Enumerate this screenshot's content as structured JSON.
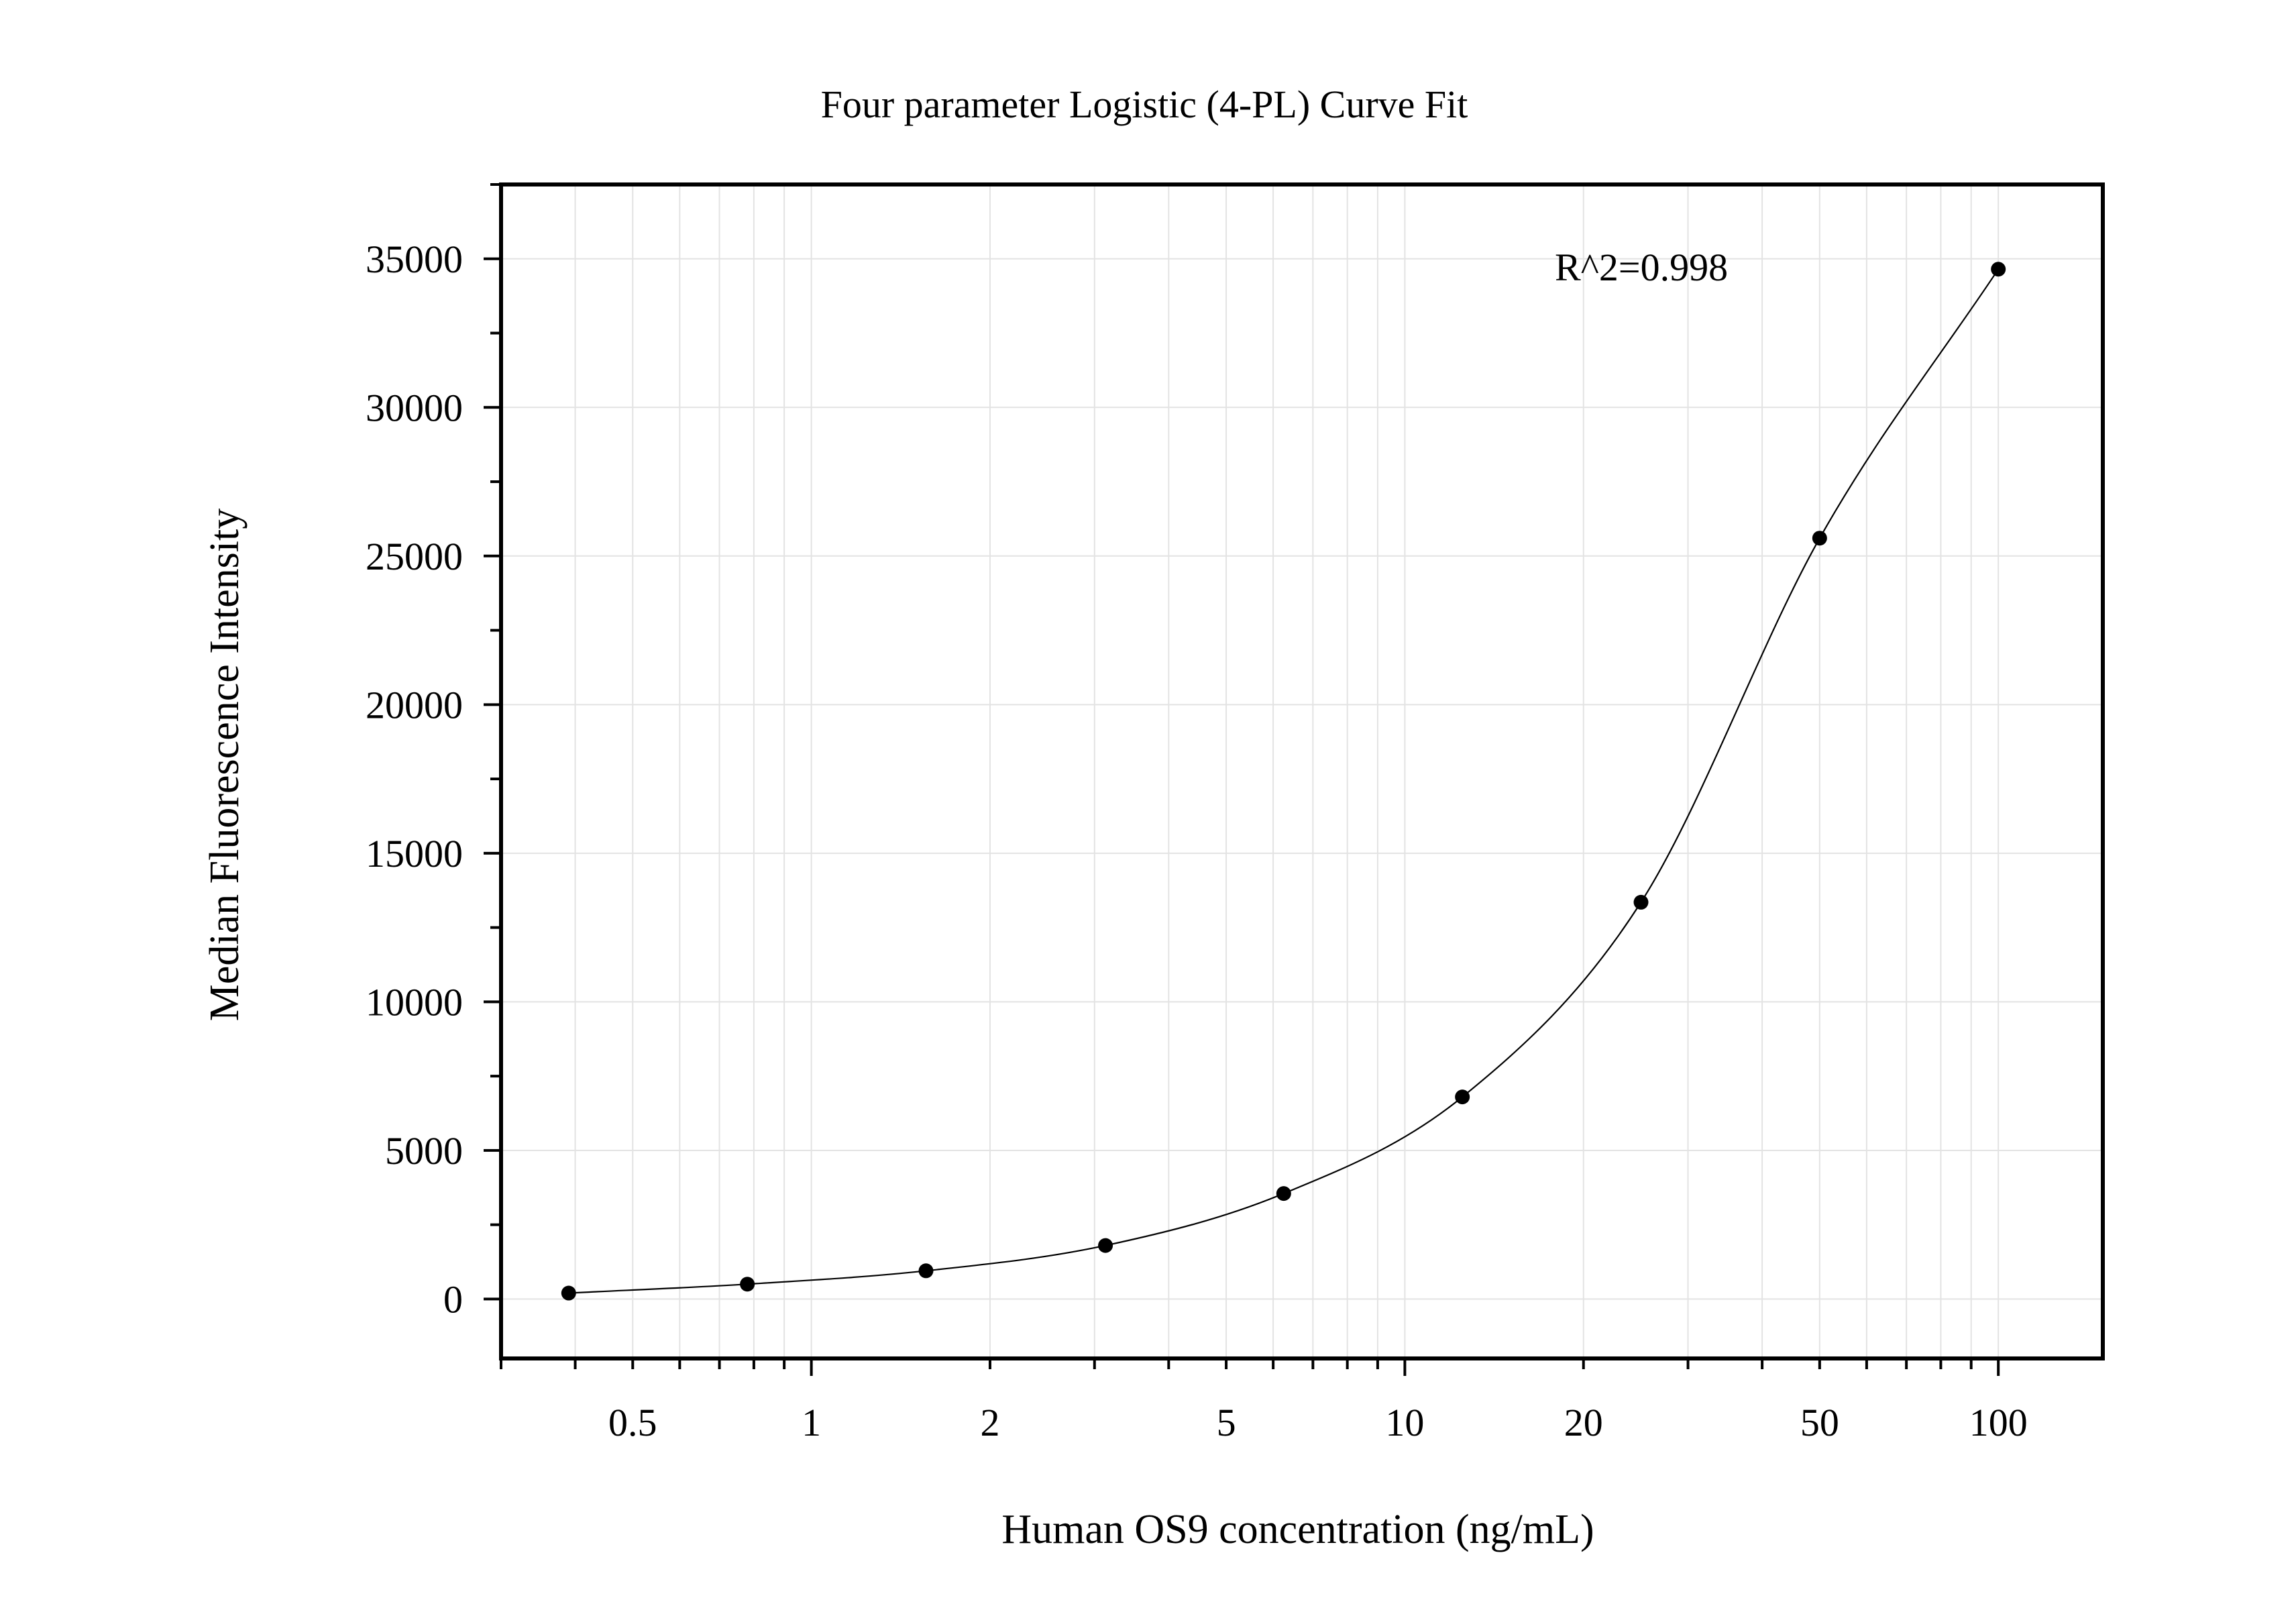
{
  "chart_data": {
    "type": "scatter",
    "title": "Four parameter Logistic (4-PL) Curve Fit",
    "xlabel": "Human OS9 concentration (ng/mL)",
    "ylabel": "Median Fluorescence Intensity",
    "annotation": "R^2=0.998",
    "x_scale": "log",
    "xlim": [
      0.3,
      150
    ],
    "ylim": [
      -2000,
      37500
    ],
    "grid": true,
    "x_ticks": [
      {
        "value": 0.5,
        "label": "0.5"
      },
      {
        "value": 1,
        "label": "1"
      },
      {
        "value": 2,
        "label": "2"
      },
      {
        "value": 5,
        "label": "5"
      },
      {
        "value": 10,
        "label": "10"
      },
      {
        "value": 20,
        "label": "20"
      },
      {
        "value": 50,
        "label": "50"
      },
      {
        "value": 100,
        "label": "100"
      }
    ],
    "y_ticks": [
      {
        "value": 0,
        "label": "0"
      },
      {
        "value": 5000,
        "label": "5000"
      },
      {
        "value": 10000,
        "label": "10000"
      },
      {
        "value": 15000,
        "label": "15000"
      },
      {
        "value": 20000,
        "label": "20000"
      },
      {
        "value": 25000,
        "label": "25000"
      },
      {
        "value": 30000,
        "label": "30000"
      },
      {
        "value": 35000,
        "label": "35000"
      }
    ],
    "points": [
      {
        "x": 0.39,
        "y": 200
      },
      {
        "x": 0.78,
        "y": 500
      },
      {
        "x": 1.56,
        "y": 950
      },
      {
        "x": 3.13,
        "y": 1800
      },
      {
        "x": 6.25,
        "y": 3550
      },
      {
        "x": 12.5,
        "y": 6800
      },
      {
        "x": 25,
        "y": 13350
      },
      {
        "x": 50,
        "y": 25600
      },
      {
        "x": 100,
        "y": 34650
      }
    ],
    "fit_curve": {
      "x_start": 0.39,
      "x_end": 100
    },
    "colors": {
      "points": "#000000",
      "curve": "#000000",
      "grid": "#e3e3e3",
      "frame": "#000000"
    }
  }
}
